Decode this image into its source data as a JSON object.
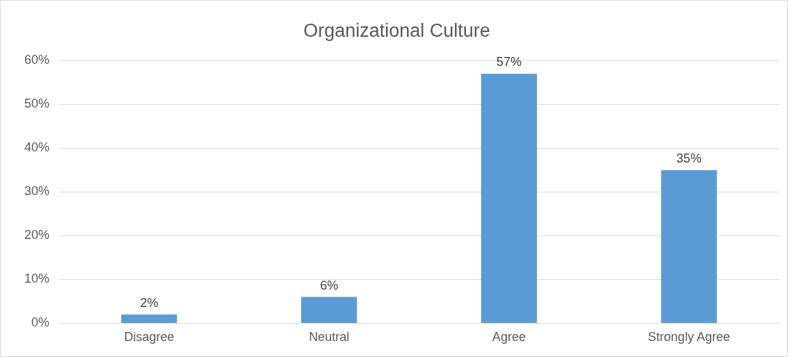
{
  "chart_data": {
    "type": "bar",
    "title": "Organizational Culture",
    "categories": [
      "Disagree",
      "Neutral",
      "Agree",
      "Strongly Agree"
    ],
    "values": [
      2,
      6,
      57,
      35
    ],
    "color": "#5b9bd5",
    "value_labels": [
      "2%",
      "6%",
      "57%",
      "35%"
    ],
    "ylim": [
      0,
      60
    ],
    "yticks": [
      {
        "value": 0,
        "label": "0%"
      },
      {
        "value": 10,
        "label": "10%"
      },
      {
        "value": 20,
        "label": "20%"
      },
      {
        "value": 30,
        "label": "30%"
      },
      {
        "value": 40,
        "label": "40%"
      },
      {
        "value": 50,
        "label": "50%"
      },
      {
        "value": 60,
        "label": "60%"
      }
    ],
    "grid": "y",
    "legend": false
  }
}
